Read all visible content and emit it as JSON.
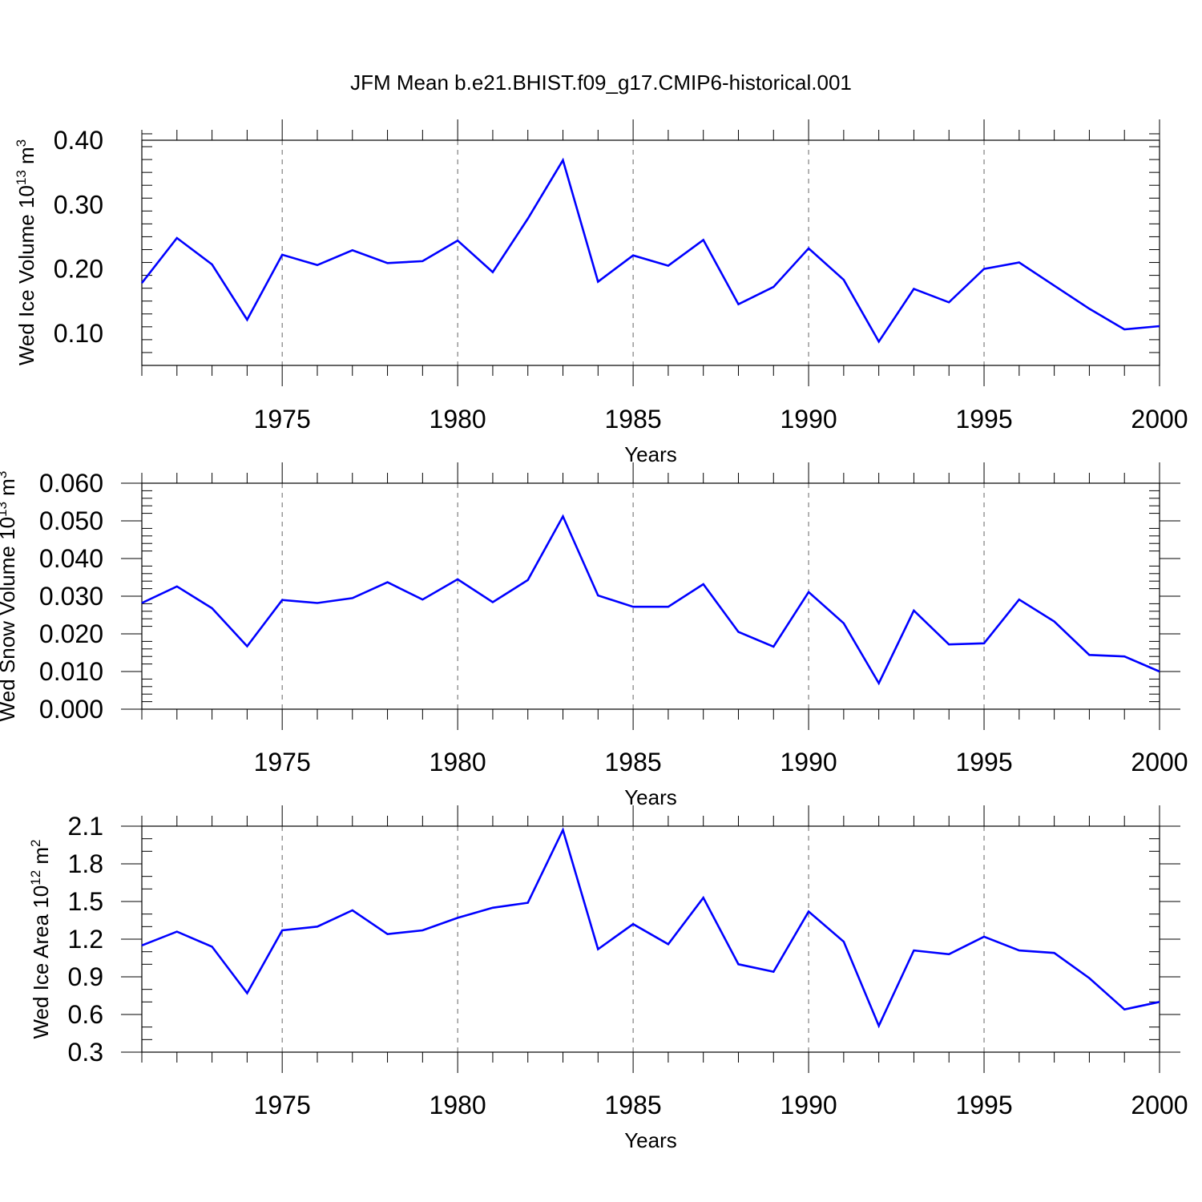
{
  "figure_title": "JFM Mean b.e21.BHIST.f09_g17.CMIP6-historical.001",
  "colors": {
    "series": "#0000ff",
    "axis": "#000000",
    "grid": "#000000"
  },
  "chart_data": [
    {
      "type": "line",
      "title": "",
      "ylabel": "Wed Ice Volume 10^13 m^3",
      "ylabel_parts": {
        "base": "Wed Ice Volume 10",
        "exp1": "13",
        "mid": " m",
        "exp2": "3"
      },
      "xlabel": "Years",
      "xlim": [
        1971,
        2000
      ],
      "ylim": [
        0.05,
        0.4
      ],
      "yticks": [
        0.1,
        0.2,
        0.3,
        0.4
      ],
      "ytick_labels": [
        "0.10",
        "0.20",
        "0.30",
        "0.40"
      ],
      "yminor_step": 0.02,
      "xticks": [
        1975,
        1980,
        1985,
        1990,
        1995,
        2000
      ],
      "xtick_labels": [
        "1975",
        "1980",
        "1985",
        "1990",
        "1995",
        "2000"
      ],
      "grid": "vertical dashed at major x ticks",
      "series": [
        {
          "name": "Wed Ice Volume",
          "x": [
            1971,
            1972,
            1973,
            1974,
            1975,
            1976,
            1977,
            1978,
            1979,
            1980,
            1981,
            1982,
            1983,
            1984,
            1985,
            1986,
            1987,
            1988,
            1989,
            1990,
            1991,
            1992,
            1993,
            1994,
            1995,
            1996,
            1997,
            1998,
            1999,
            2000
          ],
          "values": [
            0.178,
            0.248,
            0.207,
            0.121,
            0.222,
            0.206,
            0.229,
            0.209,
            0.212,
            0.244,
            0.195,
            0.278,
            0.369,
            0.18,
            0.221,
            0.205,
            0.245,
            0.145,
            0.172,
            0.232,
            0.183,
            0.087,
            0.169,
            0.148,
            0.2,
            0.21,
            0.174,
            0.138,
            0.106,
            0.111
          ]
        }
      ]
    },
    {
      "type": "line",
      "title": "",
      "ylabel": "Wed Snow Volume 10^13 m^3",
      "ylabel_parts": {
        "base": "Wed Snow Volume 10",
        "exp1": "13",
        "mid": " m",
        "exp2": "3"
      },
      "xlabel": "Years",
      "xlim": [
        1971,
        2000
      ],
      "ylim": [
        0.0,
        0.06
      ],
      "yticks": [
        0.0,
        0.01,
        0.02,
        0.03,
        0.04,
        0.05,
        0.06
      ],
      "ytick_labels": [
        "0.000",
        "0.010",
        "0.020",
        "0.030",
        "0.040",
        "0.050",
        "0.060"
      ],
      "yminor_step": 0.002,
      "xticks": [
        1975,
        1980,
        1985,
        1990,
        1995,
        2000
      ],
      "xtick_labels": [
        "1975",
        "1980",
        "1985",
        "1990",
        "1995",
        "2000"
      ],
      "grid": "vertical dashed at major x ticks",
      "series": [
        {
          "name": "Wed Snow Volume",
          "x": [
            1971,
            1972,
            1973,
            1974,
            1975,
            1976,
            1977,
            1978,
            1979,
            1980,
            1981,
            1982,
            1983,
            1984,
            1985,
            1986,
            1987,
            1988,
            1989,
            1990,
            1991,
            1992,
            1993,
            1994,
            1995,
            1996,
            1997,
            1998,
            1999,
            2000
          ],
          "values": [
            0.0282,
            0.0326,
            0.0268,
            0.0167,
            0.029,
            0.0282,
            0.0295,
            0.0337,
            0.0291,
            0.0345,
            0.0284,
            0.0343,
            0.0512,
            0.0302,
            0.0272,
            0.0272,
            0.0332,
            0.0205,
            0.0166,
            0.0311,
            0.0228,
            0.0069,
            0.0262,
            0.0172,
            0.0175,
            0.0291,
            0.0233,
            0.0144,
            0.014,
            0.01
          ]
        }
      ]
    },
    {
      "type": "line",
      "title": "",
      "ylabel": "Wed Ice Area 10^12 m^2",
      "ylabel_parts": {
        "base": "Wed Ice Area 10",
        "exp1": "12",
        "mid": " m",
        "exp2": "2"
      },
      "xlabel": "Years",
      "xlim": [
        1971,
        2000
      ],
      "ylim": [
        0.3,
        2.1
      ],
      "yticks": [
        0.3,
        0.6,
        0.9,
        1.2,
        1.5,
        1.8,
        2.1
      ],
      "ytick_labels": [
        "0.3",
        "0.6",
        "0.9",
        "1.2",
        "1.5",
        "1.8",
        "2.1"
      ],
      "yminor_step": 0.1,
      "xticks": [
        1975,
        1980,
        1985,
        1990,
        1995,
        2000
      ],
      "xtick_labels": [
        "1975",
        "1980",
        "1985",
        "1990",
        "1995",
        "2000"
      ],
      "grid": "vertical dashed at major x ticks",
      "series": [
        {
          "name": "Wed Ice Area",
          "x": [
            1971,
            1972,
            1973,
            1974,
            1975,
            1976,
            1977,
            1978,
            1979,
            1980,
            1981,
            1982,
            1983,
            1984,
            1985,
            1986,
            1987,
            1988,
            1989,
            1990,
            1991,
            1992,
            1993,
            1994,
            1995,
            1996,
            1997,
            1998,
            1999,
            2000
          ],
          "values": [
            1.15,
            1.26,
            1.14,
            0.77,
            1.27,
            1.3,
            1.43,
            1.24,
            1.27,
            1.37,
            1.45,
            1.49,
            2.07,
            1.12,
            1.32,
            1.16,
            1.53,
            1.0,
            0.94,
            1.42,
            1.18,
            0.51,
            1.11,
            1.08,
            1.22,
            1.11,
            1.09,
            0.89,
            0.64,
            0.7
          ]
        }
      ]
    }
  ]
}
